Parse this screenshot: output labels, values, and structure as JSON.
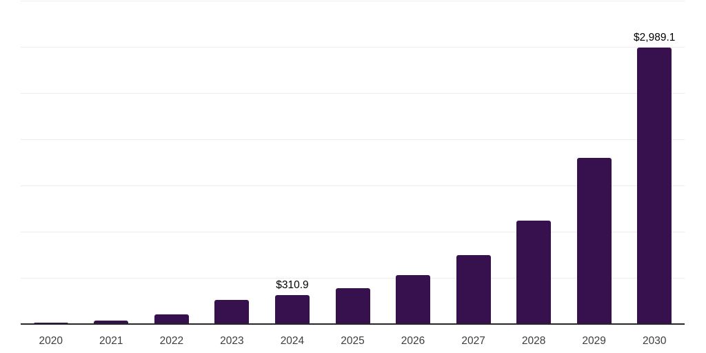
{
  "chart_data": {
    "type": "bar",
    "categories": [
      "2020",
      "2021",
      "2022",
      "2023",
      "2024",
      "2025",
      "2026",
      "2027",
      "2028",
      "2029",
      "2030"
    ],
    "values": [
      16,
      39,
      103,
      265,
      310.9,
      390,
      527,
      750,
      1123,
      1795,
      2989.1
    ],
    "data_labels": [
      "",
      "",
      "",
      "",
      "$310.9",
      "",
      "",
      "",
      "",
      "",
      "$2,989.1"
    ],
    "title": "",
    "xlabel": "",
    "ylabel": "",
    "ylim": [
      0,
      3500
    ],
    "grid_step": 500,
    "grid": true,
    "legend": false,
    "colors": {
      "bar": "#37114E",
      "gridline": "#ededed",
      "axis": "#262626",
      "tick_label": "#3d3d3d",
      "data_label": "#000000",
      "background": "#ffffff"
    }
  }
}
